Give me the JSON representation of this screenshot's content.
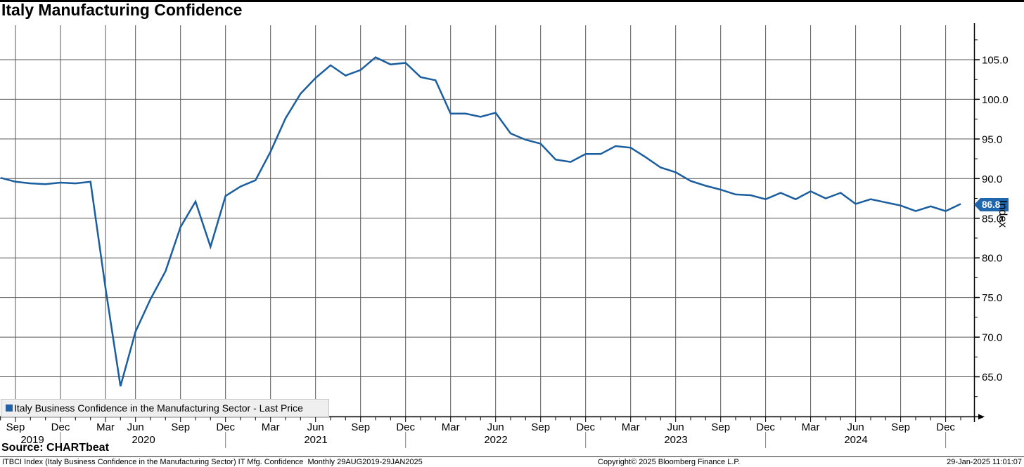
{
  "title": "Italy Manufacturing Confidence",
  "legend": {
    "label": "Italy Business Confidence in the Manufacturing Sector - Last Price",
    "marker_color": "#2361a4"
  },
  "y_axis": {
    "label": "Index"
  },
  "last_price_badge": {
    "value": "86.8",
    "color": "#1f66ad"
  },
  "source_line": "Source: CHARTbeat",
  "footer": {
    "left": "ITBCI Index (Italy Business Confidence in the Manufacturing Sector) IT Mfg. Confidence  Monthly 29AUG2019-29JAN2025",
    "center": "Copyright© 2025 Bloomberg Finance L.P.",
    "right": "29-Jan-2025 11:01:07"
  },
  "chart_data": {
    "type": "line",
    "title": "Italy Manufacturing Confidence",
    "ylabel": "Index",
    "ylim": [
      60.0,
      109.3
    ],
    "y_ticks": [
      105,
      100,
      95,
      90,
      85,
      80,
      75,
      70,
      65
    ],
    "grid": true,
    "legend_position": "bottom-left",
    "missing_months": [
      "Apr 2020"
    ],
    "x": [
      "Aug 2019",
      "Sep 2019",
      "Oct 2019",
      "Nov 2019",
      "Dec 2019",
      "Jan 2020",
      "Feb 2020",
      "Mar 2020",
      "May 2020",
      "Jun 2020",
      "Jul 2020",
      "Aug 2020",
      "Sep 2020",
      "Oct 2020",
      "Nov 2020",
      "Dec 2020",
      "Jan 2021",
      "Feb 2021",
      "Mar 2021",
      "Apr 2021",
      "May 2021",
      "Jun 2021",
      "Jul 2021",
      "Aug 2021",
      "Sep 2021",
      "Oct 2021",
      "Nov 2021",
      "Dec 2021",
      "Jan 2022",
      "Feb 2022",
      "Mar 2022",
      "Apr 2022",
      "May 2022",
      "Jun 2022",
      "Jul 2022",
      "Aug 2022",
      "Sep 2022",
      "Oct 2022",
      "Nov 2022",
      "Dec 2022",
      "Jan 2023",
      "Feb 2023",
      "Mar 2023",
      "Apr 2023",
      "May 2023",
      "Jun 2023",
      "Jul 2023",
      "Aug 2023",
      "Sep 2023",
      "Oct 2023",
      "Nov 2023",
      "Dec 2023",
      "Jan 2024",
      "Feb 2024",
      "Mar 2024",
      "Apr 2024",
      "May 2024",
      "Jun 2024",
      "Jul 2024",
      "Aug 2024",
      "Sep 2024",
      "Oct 2024",
      "Nov 2024",
      "Dec 2024",
      "Jan 2025"
    ],
    "series": [
      {
        "name": "Italy Business Confidence in the Manufacturing Sector - Last Price",
        "color": "#1b5e9f",
        "last_price": 86.8,
        "values": [
          90.1,
          89.6,
          89.4,
          89.3,
          89.5,
          89.4,
          89.6,
          76.2,
          63.8,
          70.7,
          74.8,
          78.3,
          83.9,
          87.1,
          81.4,
          87.8,
          89.0,
          89.8,
          93.4,
          97.6,
          100.7,
          102.7,
          104.3,
          103.0,
          103.7,
          105.3,
          104.4,
          104.6,
          102.8,
          102.4,
          98.2,
          98.2,
          97.8,
          98.3,
          95.7,
          94.9,
          94.4,
          92.4,
          92.1,
          93.1,
          93.1,
          94.1,
          93.9,
          92.7,
          91.4,
          90.8,
          89.7,
          89.1,
          88.6,
          88.0,
          87.9,
          87.4,
          88.2,
          87.4,
          88.4,
          87.5,
          88.2,
          86.8,
          87.4,
          87.0,
          86.6,
          85.9,
          86.5,
          85.9,
          86.8
        ]
      }
    ],
    "x_ticks": [
      [
        1,
        "Sep"
      ],
      [
        4,
        "Dec"
      ],
      [
        7,
        "Mar"
      ],
      [
        9,
        "Jun"
      ],
      [
        12,
        "Sep"
      ],
      [
        15,
        "Dec"
      ],
      [
        18,
        "Mar"
      ],
      [
        21,
        "Jun"
      ],
      [
        24,
        "Sep"
      ],
      [
        27,
        "Dec"
      ],
      [
        30,
        "Mar"
      ],
      [
        33,
        "Jun"
      ],
      [
        36,
        "Sep"
      ],
      [
        39,
        "Dec"
      ],
      [
        42,
        "Mar"
      ],
      [
        45,
        "Jun"
      ],
      [
        48,
        "Sep"
      ],
      [
        51,
        "Dec"
      ],
      [
        54,
        "Mar"
      ],
      [
        57,
        "Jun"
      ],
      [
        60,
        "Sep"
      ],
      [
        63,
        "Dec"
      ]
    ],
    "year_labels": [
      [
        "2019",
        46
      ],
      [
        "2020",
        204
      ],
      [
        "2021",
        449
      ],
      [
        "2022",
        705
      ],
      [
        "2023",
        961
      ],
      [
        "2024",
        1217
      ]
    ],
    "year_divider_slots": [
      4,
      15,
      27,
      39,
      51,
      63
    ]
  }
}
